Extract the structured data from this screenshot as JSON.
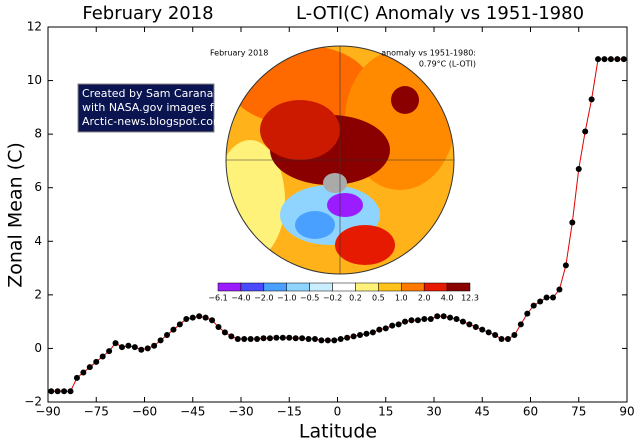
{
  "chart_data": {
    "type": "line",
    "title_left": "February 2018",
    "title_right": "L-OTI(C) Anomaly vs 1951-1980",
    "x_label": "Latitude",
    "y_label": "Zonal Mean (C)",
    "x": [
      -89,
      -87,
      -85,
      -83,
      -81,
      -79,
      -77,
      -75,
      -73,
      -71,
      -69,
      -67,
      -65,
      -63,
      -61,
      -59,
      -57,
      -55,
      -53,
      -51,
      -49,
      -47,
      -45,
      -43,
      -41,
      -39,
      -37,
      -35,
      -33,
      -31,
      -29,
      -27,
      -25,
      -23,
      -21,
      -19,
      -17,
      -15,
      -13,
      -11,
      -9,
      -7,
      -5,
      -3,
      -1,
      1,
      3,
      5,
      7,
      9,
      11,
      13,
      15,
      17,
      19,
      21,
      23,
      25,
      27,
      29,
      31,
      33,
      35,
      37,
      39,
      41,
      43,
      45,
      47,
      49,
      51,
      53,
      55,
      57,
      59,
      61,
      63,
      65,
      67,
      69,
      71,
      73,
      75,
      77,
      79,
      81,
      83,
      85,
      87,
      89
    ],
    "series": [
      {
        "color": "#dd0000",
        "marker_color": "#000000",
        "values": [
          -1.6,
          -1.6,
          -1.6,
          -1.6,
          -1.1,
          -0.9,
          -0.7,
          -0.5,
          -0.3,
          -0.1,
          0.2,
          0.05,
          0.1,
          0.05,
          -0.05,
          0.0,
          0.1,
          0.3,
          0.5,
          0.7,
          0.9,
          1.1,
          1.15,
          1.2,
          1.15,
          1.05,
          0.8,
          0.6,
          0.45,
          0.35,
          0.35,
          0.35,
          0.35,
          0.38,
          0.38,
          0.4,
          0.4,
          0.4,
          0.38,
          0.38,
          0.35,
          0.35,
          0.3,
          0.3,
          0.3,
          0.35,
          0.4,
          0.45,
          0.5,
          0.55,
          0.6,
          0.7,
          0.75,
          0.85,
          0.9,
          1.0,
          1.05,
          1.05,
          1.1,
          1.1,
          1.2,
          1.2,
          1.15,
          1.1,
          1.0,
          0.9,
          0.8,
          0.7,
          0.6,
          0.5,
          0.35,
          0.35,
          0.5,
          0.9,
          1.3,
          1.6,
          1.75,
          1.9,
          1.9,
          2.2,
          3.1,
          4.7,
          6.7,
          8.1,
          9.3,
          10.8,
          10.8,
          10.8,
          10.8,
          10.8
        ]
      }
    ],
    "xlim": [
      -90,
      90
    ],
    "xticks": [
      {
        "value": -90,
        "label": "−90"
      },
      {
        "value": -75,
        "label": "−75"
      },
      {
        "value": -60,
        "label": "−60"
      },
      {
        "value": -45,
        "label": "−45"
      },
      {
        "value": -30,
        "label": "−30"
      },
      {
        "value": -15,
        "label": "−15"
      },
      0,
      15,
      30,
      45,
      60,
      75,
      90
    ],
    "ylim": [
      -2,
      12
    ],
    "yticks": [
      {
        "value": -2,
        "label": "−2"
      },
      0,
      2,
      4,
      6,
      8,
      10,
      12
    ],
    "grid": false,
    "credit": [
      "Created by Sam Carana",
      "with NASA.gov images for",
      "Arctic-news.blogspot.com"
    ],
    "inset": {
      "title": "February 2018",
      "note": [
        "anomaly vs 1951-1980:",
        "0.79°C (L-OTI)"
      ],
      "colorbar_labels": [
        "−6.1",
        "−4.0",
        "−2.0",
        "−1.0",
        "−0.5",
        "−0.2",
        "0.2",
        "0.5",
        "1.0",
        "2.0",
        "4.0",
        "12.3"
      ],
      "colorbar_colors": [
        "#9a1cff",
        "#4a4aff",
        "#4aa0ff",
        "#8fd4ff",
        "#c8eeff",
        "#ffffff",
        "#fff27a",
        "#ffc21a",
        "#ff7a00",
        "#e61a00",
        "#8a0000"
      ]
    }
  }
}
